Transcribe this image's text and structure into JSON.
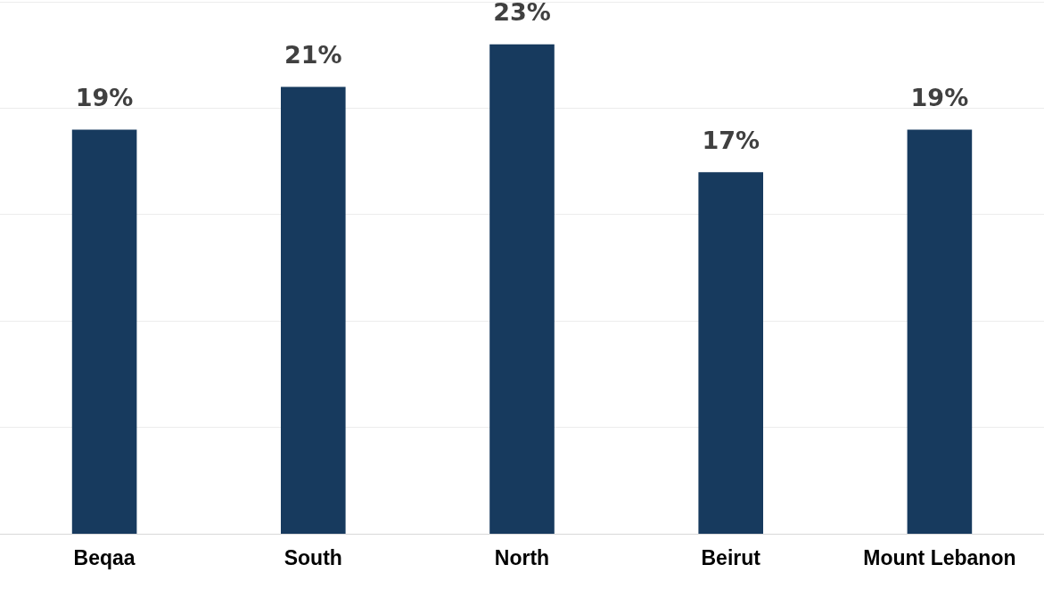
{
  "chart_data": {
    "type": "bar",
    "categories": [
      "Beqaa",
      "South",
      "North",
      "Beirut",
      "Mount Lebanon"
    ],
    "values": [
      19,
      21,
      23,
      17,
      19
    ],
    "value_labels": [
      "19%",
      "21%",
      "23%",
      "17%",
      "19%"
    ],
    "color": "#173a5e",
    "ylim": [
      0,
      25
    ],
    "yticks": [
      {
        "value": 0,
        "label": null
      },
      {
        "value": 5,
        "label": null
      },
      {
        "value": 10,
        "label": null
      },
      {
        "value": 15,
        "label": null
      },
      {
        "value": 20,
        "label": null
      },
      {
        "value": 25,
        "label": null
      }
    ],
    "grid": "y",
    "legend": false,
    "tick_labels": "x"
  }
}
